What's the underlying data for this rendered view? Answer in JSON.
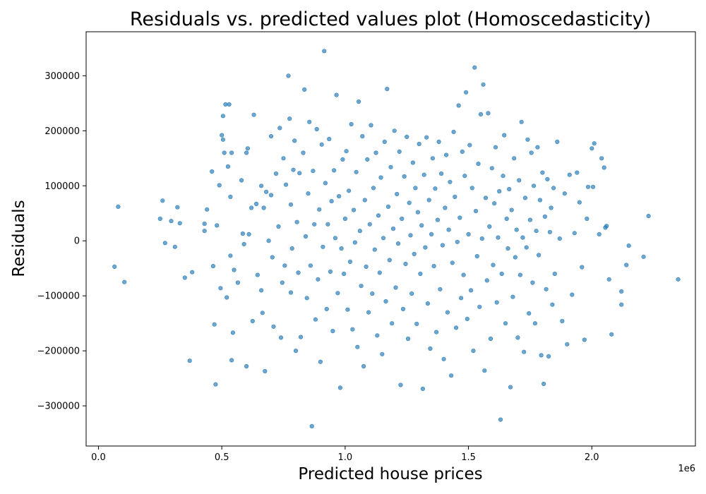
{
  "chart_data": {
    "type": "scatter",
    "title": "Residuals vs. predicted values plot (Homoscedasticity)",
    "xlabel": "Predicted house prices",
    "ylabel": "Residuals",
    "x_offset_label": "1e6",
    "xlim": [
      -50000,
      2420000
    ],
    "ylim": [
      -373000,
      380000
    ],
    "x_ticks": [
      0,
      500000,
      1000000,
      1500000,
      2000000
    ],
    "x_tick_labels": [
      "0.0",
      "0.5",
      "1.0",
      "1.5",
      "2.0"
    ],
    "y_ticks": [
      -300000,
      -200000,
      -100000,
      0,
      100000,
      200000,
      300000
    ],
    "y_tick_labels": [
      "−300000",
      "−200000",
      "−100000",
      "0",
      "100000",
      "200000",
      "300000"
    ],
    "grid": false,
    "point_color": "#1f77b4",
    "point_opacity": 0.65,
    "points": [
      [
        65000,
        -47000
      ],
      [
        80000,
        62000
      ],
      [
        105000,
        -75000
      ],
      [
        250000,
        40000
      ],
      [
        260000,
        73000
      ],
      [
        270000,
        -4000
      ],
      [
        295000,
        36000
      ],
      [
        310000,
        -11000
      ],
      [
        320000,
        61000
      ],
      [
        330000,
        32000
      ],
      [
        350000,
        -67000
      ],
      [
        370000,
        -218000
      ],
      [
        380000,
        -57000
      ],
      [
        430000,
        18000
      ],
      [
        430000,
        31000
      ],
      [
        440000,
        57000
      ],
      [
        460000,
        126000
      ],
      [
        465000,
        -46000
      ],
      [
        470000,
        -152000
      ],
      [
        475000,
        -261000
      ],
      [
        480000,
        28000
      ],
      [
        490000,
        101000
      ],
      [
        495000,
        -86000
      ],
      [
        500000,
        192000
      ],
      [
        505000,
        184000
      ],
      [
        505000,
        227000
      ],
      [
        510000,
        160000
      ],
      [
        515000,
        248000
      ],
      [
        520000,
        -103000
      ],
      [
        525000,
        135000
      ],
      [
        530000,
        248000
      ],
      [
        535000,
        80000
      ],
      [
        535000,
        -27000
      ],
      [
        540000,
        160000
      ],
      [
        540000,
        -217000
      ],
      [
        545000,
        -167000
      ],
      [
        550000,
        -53000
      ],
      [
        565000,
        -76000
      ],
      [
        580000,
        110000
      ],
      [
        585000,
        13000
      ],
      [
        590000,
        -6000
      ],
      [
        600000,
        160000
      ],
      [
        600000,
        -228000
      ],
      [
        605000,
        168000
      ],
      [
        610000,
        12000
      ],
      [
        620000,
        60000
      ],
      [
        625000,
        -146000
      ],
      [
        630000,
        229000
      ],
      [
        640000,
        67000
      ],
      [
        645000,
        -62000
      ],
      [
        660000,
        100000
      ],
      [
        660000,
        -90000
      ],
      [
        665000,
        -131000
      ],
      [
        670000,
        60000
      ],
      [
        675000,
        -237000
      ],
      [
        680000,
        89000
      ],
      [
        690000,
        0
      ],
      [
        700000,
        190000
      ],
      [
        700000,
        83000
      ],
      [
        705000,
        -30000
      ],
      [
        710000,
        -156000
      ],
      [
        720000,
        122000
      ],
      [
        730000,
        26000
      ],
      [
        735000,
        205000
      ],
      [
        740000,
        -176000
      ],
      [
        745000,
        -76000
      ],
      [
        750000,
        150000
      ],
      [
        755000,
        -45000
      ],
      [
        760000,
        102000
      ],
      [
        770000,
        300000
      ],
      [
        775000,
        222000
      ],
      [
        780000,
        66000
      ],
      [
        780000,
        -94000
      ],
      [
        785000,
        -14000
      ],
      [
        790000,
        129000
      ],
      [
        795000,
        182000
      ],
      [
        800000,
        -200000
      ],
      [
        805000,
        34000
      ],
      [
        810000,
        -58000
      ],
      [
        815000,
        123000
      ],
      [
        820000,
        -175000
      ],
      [
        830000,
        160000
      ],
      [
        835000,
        275000
      ],
      [
        840000,
        8000
      ],
      [
        845000,
        -104000
      ],
      [
        850000,
        86000
      ],
      [
        855000,
        216000
      ],
      [
        860000,
        -45000
      ],
      [
        865000,
        -337000
      ],
      [
        870000,
        127000
      ],
      [
        875000,
        30000
      ],
      [
        880000,
        -143000
      ],
      [
        885000,
        203000
      ],
      [
        890000,
        -70000
      ],
      [
        895000,
        57000
      ],
      [
        900000,
        -220000
      ],
      [
        905000,
        175000
      ],
      [
        910000,
        -11000
      ],
      [
        915000,
        345000
      ],
      [
        920000,
        105000
      ],
      [
        925000,
        -124000
      ],
      [
        930000,
        30000
      ],
      [
        935000,
        185000
      ],
      [
        940000,
        -56000
      ],
      [
        945000,
        72000
      ],
      [
        950000,
        -164000
      ],
      [
        955000,
        128000
      ],
      [
        960000,
        5000
      ],
      [
        965000,
        265000
      ],
      [
        970000,
        -95000
      ],
      [
        975000,
        81000
      ],
      [
        980000,
        -267000
      ],
      [
        985000,
        -14000
      ],
      [
        990000,
        148000
      ],
      [
        995000,
        -60000
      ],
      [
        1000000,
        40000
      ],
      [
        1005000,
        163000
      ],
      [
        1010000,
        -125000
      ],
      [
        1015000,
        91000
      ],
      [
        1020000,
        -38000
      ],
      [
        1025000,
        212000
      ],
      [
        1030000,
        -161000
      ],
      [
        1035000,
        56000
      ],
      [
        1040000,
        -3000
      ],
      [
        1045000,
        125000
      ],
      [
        1050000,
        -193000
      ],
      [
        1055000,
        253000
      ],
      [
        1060000,
        18000
      ],
      [
        1065000,
        -82000
      ],
      [
        1070000,
        190000
      ],
      [
        1075000,
        -228000
      ],
      [
        1080000,
        74000
      ],
      [
        1085000,
        -47000
      ],
      [
        1090000,
        148000
      ],
      [
        1095000,
        -130000
      ],
      [
        1100000,
        30000
      ],
      [
        1105000,
        210000
      ],
      [
        1110000,
        -96000
      ],
      [
        1115000,
        96000
      ],
      [
        1120000,
        -16000
      ],
      [
        1125000,
        160000
      ],
      [
        1130000,
        -172000
      ],
      [
        1135000,
        46000
      ],
      [
        1140000,
        -58000
      ],
      [
        1145000,
        115000
      ],
      [
        1150000,
        -206000
      ],
      [
        1155000,
        5000
      ],
      [
        1160000,
        180000
      ],
      [
        1165000,
        -110000
      ],
      [
        1170000,
        276000
      ],
      [
        1175000,
        62000
      ],
      [
        1180000,
        -35000
      ],
      [
        1185000,
        134000
      ],
      [
        1190000,
        -150000
      ],
      [
        1195000,
        22000
      ],
      [
        1200000,
        200000
      ],
      [
        1205000,
        -85000
      ],
      [
        1210000,
        85000
      ],
      [
        1215000,
        -5000
      ],
      [
        1220000,
        162000
      ],
      [
        1225000,
        -262000
      ],
      [
        1230000,
        40000
      ],
      [
        1235000,
        -124000
      ],
      [
        1240000,
        117000
      ],
      [
        1245000,
        -42000
      ],
      [
        1250000,
        189000
      ],
      [
        1255000,
        -178000
      ],
      [
        1260000,
        69000
      ],
      [
        1265000,
        10000
      ],
      [
        1270000,
        -96000
      ],
      [
        1275000,
        142000
      ],
      [
        1280000,
        -24000
      ],
      [
        1285000,
        96000
      ],
      [
        1290000,
        -151000
      ],
      [
        1295000,
        52000
      ],
      [
        1300000,
        176000
      ],
      [
        1305000,
        -60000
      ],
      [
        1310000,
        28000
      ],
      [
        1315000,
        -269000
      ],
      [
        1320000,
        120000
      ],
      [
        1325000,
        -12000
      ],
      [
        1330000,
        188000
      ],
      [
        1335000,
        -114000
      ],
      [
        1340000,
        74000
      ],
      [
        1345000,
        -196000
      ],
      [
        1350000,
        12000
      ],
      [
        1355000,
        150000
      ],
      [
        1360000,
        -46000
      ],
      [
        1365000,
        95000
      ],
      [
        1370000,
        -166000
      ],
      [
        1375000,
        38000
      ],
      [
        1380000,
        180000
      ],
      [
        1385000,
        -88000
      ],
      [
        1390000,
        122000
      ],
      [
        1395000,
        -8000
      ],
      [
        1400000,
        -215000
      ],
      [
        1405000,
        60000
      ],
      [
        1410000,
        156000
      ],
      [
        1415000,
        -130000
      ],
      [
        1420000,
        20000
      ],
      [
        1425000,
        107000
      ],
      [
        1430000,
        -245000
      ],
      [
        1435000,
        -40000
      ],
      [
        1440000,
        198000
      ],
      [
        1445000,
        80000
      ],
      [
        1450000,
        -158000
      ],
      [
        1455000,
        -2000
      ],
      [
        1460000,
        246000
      ],
      [
        1465000,
        42000
      ],
      [
        1470000,
        -104000
      ],
      [
        1475000,
        162000
      ],
      [
        1480000,
        -62000
      ],
      [
        1485000,
        118000
      ],
      [
        1490000,
        270000
      ],
      [
        1495000,
        -142000
      ],
      [
        1500000,
        12000
      ],
      [
        1505000,
        174000
      ],
      [
        1510000,
        -90000
      ],
      [
        1515000,
        96000
      ],
      [
        1520000,
        -200000
      ],
      [
        1525000,
        315000
      ],
      [
        1530000,
        54000
      ],
      [
        1535000,
        -28000
      ],
      [
        1540000,
        140000
      ],
      [
        1545000,
        -120000
      ],
      [
        1550000,
        230000
      ],
      [
        1555000,
        4000
      ],
      [
        1560000,
        284000
      ],
      [
        1565000,
        -236000
      ],
      [
        1570000,
        78000
      ],
      [
        1575000,
        -72000
      ],
      [
        1580000,
        232000
      ],
      [
        1585000,
        26000
      ],
      [
        1590000,
        -178000
      ],
      [
        1595000,
        132000
      ],
      [
        1600000,
        -44000
      ],
      [
        1605000,
        68000
      ],
      [
        1610000,
        170000
      ],
      [
        1615000,
        -112000
      ],
      [
        1620000,
        6000
      ],
      [
        1625000,
        90000
      ],
      [
        1630000,
        -325000
      ],
      [
        1635000,
        -60000
      ],
      [
        1640000,
        118000
      ],
      [
        1645000,
        192000
      ],
      [
        1650000,
        -150000
      ],
      [
        1655000,
        40000
      ],
      [
        1660000,
        -14000
      ],
      [
        1665000,
        94000
      ],
      [
        1670000,
        -266000
      ],
      [
        1675000,
        56000
      ],
      [
        1680000,
        -102000
      ],
      [
        1685000,
        150000
      ],
      [
        1690000,
        -30000
      ],
      [
        1695000,
        20000
      ],
      [
        1700000,
        -176000
      ],
      [
        1705000,
        110000
      ],
      [
        1710000,
        -62000
      ],
      [
        1715000,
        216000
      ],
      [
        1720000,
        6000
      ],
      [
        1725000,
        -202000
      ],
      [
        1730000,
        78000
      ],
      [
        1735000,
        -12000
      ],
      [
        1740000,
        184000
      ],
      [
        1745000,
        -132000
      ],
      [
        1750000,
        38000
      ],
      [
        1755000,
        160000
      ],
      [
        1760000,
        -76000
      ],
      [
        1765000,
        100000
      ],
      [
        1770000,
        -150000
      ],
      [
        1775000,
        18000
      ],
      [
        1780000,
        170000
      ],
      [
        1785000,
        -26000
      ],
      [
        1790000,
        74000
      ],
      [
        1795000,
        -208000
      ],
      [
        1800000,
        124000
      ],
      [
        1805000,
        -260000
      ],
      [
        1810000,
        44000
      ],
      [
        1815000,
        -88000
      ],
      [
        1820000,
        112000
      ],
      [
        1825000,
        -210000
      ],
      [
        1830000,
        16000
      ],
      [
        1835000,
        60000
      ],
      [
        1840000,
        -116000
      ],
      [
        1845000,
        96000
      ],
      [
        1850000,
        -60000
      ],
      [
        1860000,
        180000
      ],
      [
        1870000,
        4000
      ],
      [
        1880000,
        -146000
      ],
      [
        1890000,
        86000
      ],
      [
        1900000,
        -188000
      ],
      [
        1910000,
        120000
      ],
      [
        1920000,
        -98000
      ],
      [
        1930000,
        14000
      ],
      [
        1940000,
        124000
      ],
      [
        1950000,
        70000
      ],
      [
        1960000,
        -48000
      ],
      [
        1970000,
        -180000
      ],
      [
        1980000,
        40000
      ],
      [
        1985000,
        98000
      ],
      [
        2000000,
        168000
      ],
      [
        2005000,
        98000
      ],
      [
        2010000,
        177000
      ],
      [
        2030000,
        12000
      ],
      [
        2040000,
        150000
      ],
      [
        2050000,
        133000
      ],
      [
        2055000,
        24000
      ],
      [
        2060000,
        27000
      ],
      [
        2070000,
        -70000
      ],
      [
        2080000,
        -170000
      ],
      [
        2120000,
        -92000
      ],
      [
        2120000,
        -116000
      ],
      [
        2140000,
        -44000
      ],
      [
        2150000,
        -9000
      ],
      [
        2210000,
        -29000
      ],
      [
        2230000,
        45000
      ],
      [
        2350000,
        -70000
      ]
    ]
  }
}
